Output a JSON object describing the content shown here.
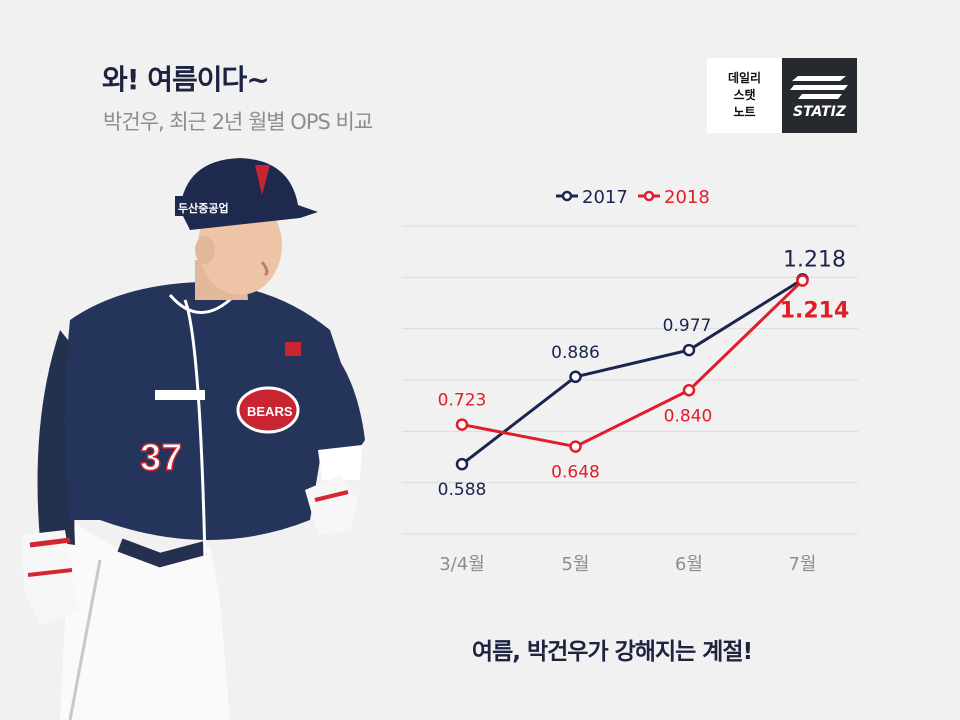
{
  "header": {
    "title": "와! 여름이다~",
    "subtitle": "박건우, 최근 2년 월별 OPS 비교"
  },
  "badge": {
    "lines": [
      "데일리",
      "스탯",
      "노트"
    ],
    "brand": "STATIZ"
  },
  "player_image": {
    "jersey_number": "37",
    "helmet_text": "두산중공업",
    "team": "BEARS"
  },
  "caption": "여름, 박건우가 강해지는 계절!",
  "colors": {
    "series_2017": "#1b2550",
    "series_2018": "#e11d2a",
    "grid": "#dcdcdc",
    "axis_text": "#8d8d8d",
    "background": "#f1f1f1"
  },
  "chart_data": {
    "type": "line",
    "title": "",
    "xlabel": "",
    "ylabel": "",
    "categories": [
      "3/4월",
      "5월",
      "6월",
      "7월"
    ],
    "series": [
      {
        "name": "2017",
        "values": [
          0.588,
          0.886,
          0.977,
          1.218
        ],
        "labels": [
          "0.588",
          "0.886",
          "0.977",
          "1.218"
        ]
      },
      {
        "name": "2018",
        "values": [
          0.723,
          0.648,
          0.84,
          1.214
        ],
        "labels": [
          "0.723",
          "0.648",
          "0.840",
          "1.214"
        ]
      }
    ],
    "ylim": [
      0.35,
      1.4
    ],
    "grid": true,
    "legend_position": "top-center"
  }
}
